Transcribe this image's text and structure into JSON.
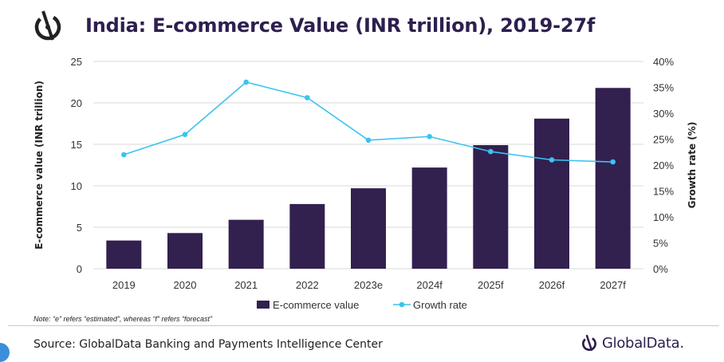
{
  "header": {
    "title": "India: E-commerce Value (INR trillion), 2019-27f"
  },
  "chart_data": {
    "type": "bar",
    "categories": [
      "2019",
      "2020",
      "2021",
      "2022",
      "2023e",
      "2024f",
      "2025f",
      "2026f",
      "2027f"
    ],
    "series": [
      {
        "name": "E-commerce value",
        "type": "bar",
        "axis": "left",
        "values": [
          3.4,
          4.3,
          5.9,
          7.8,
          9.7,
          12.2,
          14.9,
          18.1,
          21.8
        ]
      },
      {
        "name": "Growth rate",
        "type": "line",
        "axis": "right",
        "values": [
          22.0,
          25.9,
          36.0,
          33.0,
          24.8,
          25.5,
          22.6,
          21.0,
          20.6
        ]
      }
    ],
    "ylabel": "E-commerce value (INR trillion)",
    "y2label": "Growth rate (%)",
    "ylim": [
      0,
      25
    ],
    "y2lim": [
      0,
      40
    ],
    "yticks": [
      "0",
      "5",
      "10",
      "15",
      "20",
      "25"
    ],
    "y2ticks": [
      "0%",
      "5%",
      "10%",
      "15%",
      "20%",
      "25%",
      "30%",
      "35%",
      "40%"
    ],
    "grid": true,
    "legend": "bottom-center",
    "colors": {
      "bar": "#32204f",
      "line": "#3cc3f0",
      "grid": "#d9d9d9"
    }
  },
  "footer": {
    "note": "Note: “e” refers “estimated”, whereas “f” refers “forecast”",
    "source": "Source: GlobalData Banking and Payments Intelligence Center",
    "brand": "GlobalData."
  }
}
